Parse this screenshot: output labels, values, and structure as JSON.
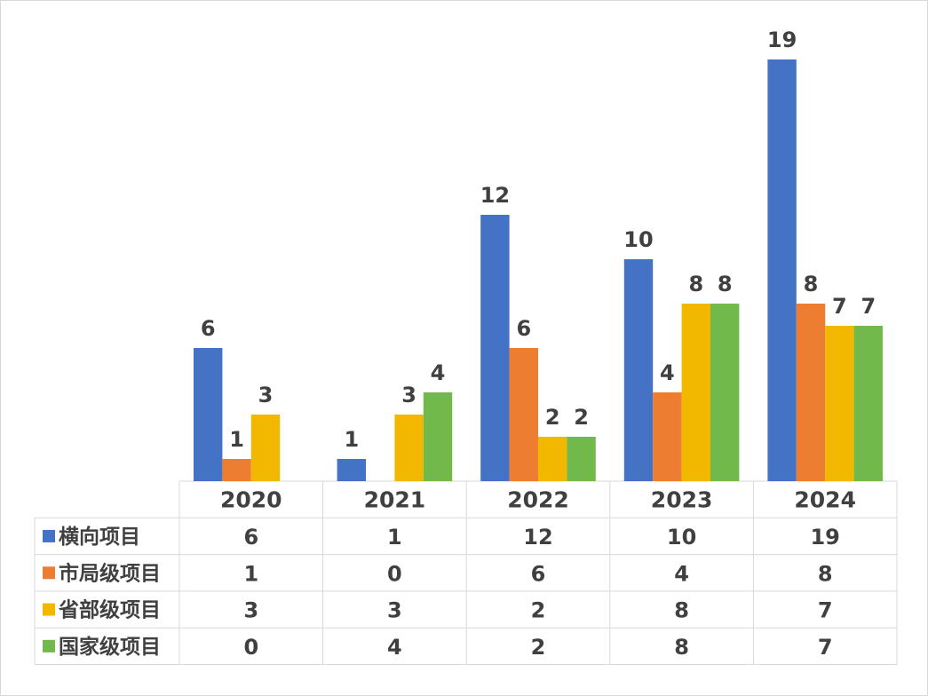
{
  "chart_data": {
    "type": "bar",
    "categories": [
      "2020",
      "2021",
      "2022",
      "2023",
      "2024"
    ],
    "series": [
      {
        "name": "横向项目",
        "color": "#4472c4",
        "values": [
          6,
          1,
          12,
          10,
          19
        ],
        "labels": [
          "6",
          "1",
          "12",
          "10",
          "19"
        ]
      },
      {
        "name": "市局级项目",
        "color": "#ed7d31",
        "values": [
          1,
          0,
          6,
          4,
          8
        ],
        "labels": [
          "1",
          "",
          "6",
          "4",
          "8"
        ]
      },
      {
        "name": "省部级项目",
        "color": "#f2b800",
        "values": [
          3,
          3,
          2,
          8,
          7
        ],
        "labels": [
          "3",
          "3",
          "2",
          "8",
          "7"
        ]
      },
      {
        "name": "国家级项目",
        "color": "#70b94a",
        "values": [
          0,
          4,
          2,
          8,
          7
        ],
        "labels": [
          "",
          "4",
          "2",
          "8",
          "7"
        ]
      }
    ],
    "table": [
      [
        "6",
        "1",
        "12",
        "10",
        "19"
      ],
      [
        "1",
        "0",
        "6",
        "4",
        "8"
      ],
      [
        "3",
        "3",
        "2",
        "8",
        "7"
      ],
      [
        "0",
        "4",
        "2",
        "8",
        "7"
      ]
    ],
    "ylim": [
      0,
      20
    ],
    "grid": false,
    "legend": "data-table"
  }
}
